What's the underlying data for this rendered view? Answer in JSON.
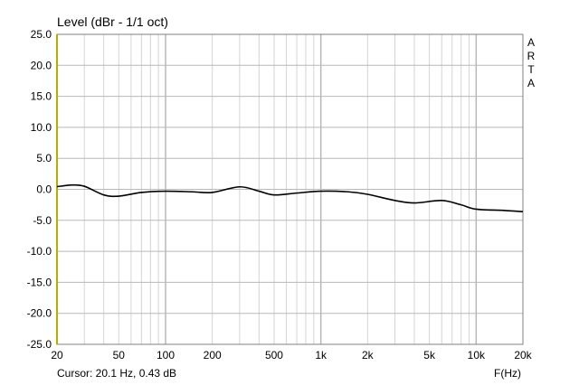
{
  "chart_data": {
    "type": "line",
    "title": "Level (dBr - 1/1 oct)",
    "xlabel": "F(Hz)",
    "ylabel": "",
    "xscale": "log",
    "xlim": [
      20,
      20000
    ],
    "ylim": [
      -25,
      25
    ],
    "grid": true,
    "x_ticks": [
      20,
      50,
      100,
      200,
      500,
      1000,
      2000,
      5000,
      10000,
      20000
    ],
    "x_tick_labels": [
      "20",
      "50",
      "100",
      "200",
      "500",
      "1k",
      "2k",
      "5k",
      "10k",
      "20k"
    ],
    "y_ticks": [
      25,
      20,
      15,
      10,
      5,
      0,
      -5,
      -10,
      -15,
      -20,
      -25
    ],
    "y_tick_labels": [
      "25.0",
      "20.0",
      "15.0",
      "10.0",
      "5.0",
      "0.0",
      "-5.0",
      "-10.0",
      "-15.0",
      "-20.0",
      "-25.0"
    ],
    "series": [
      {
        "color": "#000000",
        "x": [
          20,
          25,
          30,
          40,
          50,
          70,
          100,
          150,
          200,
          300,
          400,
          500,
          700,
          1000,
          1500,
          2000,
          3000,
          4000,
          6000,
          8000,
          10000,
          15000,
          20000
        ],
        "y": [
          0.43,
          0.7,
          0.5,
          -0.9,
          -1.1,
          -0.5,
          -0.3,
          -0.4,
          -0.5,
          0.4,
          -0.3,
          -0.9,
          -0.6,
          -0.3,
          -0.4,
          -0.8,
          -1.8,
          -2.2,
          -1.8,
          -2.5,
          -3.2,
          -3.4,
          -3.6
        ]
      }
    ],
    "cursor": "Cursor: 20.1 Hz, 0.43 dB",
    "watermark": [
      "A",
      "R",
      "T",
      "A"
    ],
    "colors": {
      "grid": "#d4d4d4",
      "major_grid": "#b8b8b8",
      "left_axis": "#b5b000",
      "frame": "#808080"
    }
  }
}
